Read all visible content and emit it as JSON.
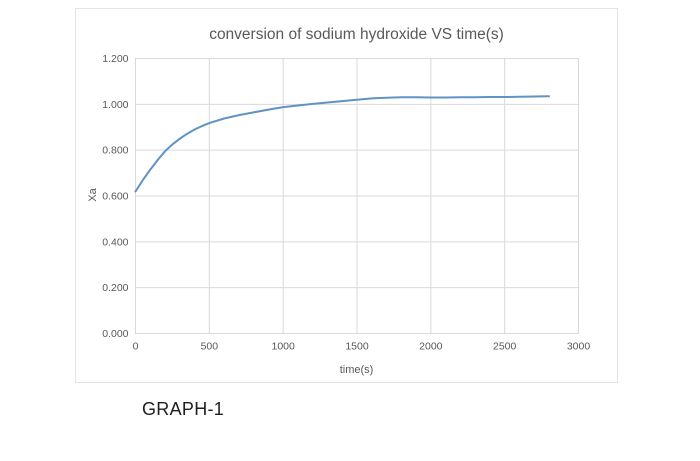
{
  "figure": {
    "caption": "GRAPH-1"
  },
  "colors": {
    "line": "#5f93c3",
    "grid": "#d9d9d9",
    "plot_border": "#d9d9d9",
    "text": "#595959",
    "card_border": "#e4e4e4",
    "background": "#ffffff"
  },
  "chart_data": {
    "type": "line",
    "title": "conversion of sodium hydroxide VS time(s)",
    "xlabel": "time(s)",
    "ylabel": "Xa",
    "xlim": [
      0,
      3000
    ],
    "ylim": [
      0,
      1.2
    ],
    "grid": true,
    "legend": "none",
    "x_tick_values": [
      0,
      500,
      1000,
      1500,
      2000,
      2500,
      3000
    ],
    "x_tick_labels": [
      "0",
      "500",
      "1000",
      "1500",
      "2000",
      "2500",
      "3000"
    ],
    "y_tick_values": [
      0.0,
      0.2,
      0.4,
      0.6,
      0.8,
      1.0,
      1.2
    ],
    "y_tick_labels": [
      "0.000",
      "0.200",
      "0.400",
      "0.600",
      "0.800",
      "1.000",
      "1.200"
    ],
    "series": [
      {
        "name": "Xa",
        "x": [
          0,
          50,
          100,
          150,
          200,
          250,
          300,
          350,
          400,
          450,
          500,
          600,
          700,
          800,
          900,
          1000,
          1100,
          1200,
          1300,
          1400,
          1500,
          1600,
          1700,
          1800,
          1900,
          2000,
          2100,
          2200,
          2300,
          2400,
          2500,
          2600,
          2700,
          2800
        ],
        "y": [
          0.62,
          0.67,
          0.715,
          0.757,
          0.795,
          0.825,
          0.85,
          0.872,
          0.89,
          0.905,
          0.918,
          0.938,
          0.953,
          0.965,
          0.977,
          0.988,
          0.995,
          1.002,
          1.008,
          1.014,
          1.02,
          1.026,
          1.029,
          1.031,
          1.031,
          1.03,
          1.03,
          1.031,
          1.031,
          1.032,
          1.032,
          1.033,
          1.034,
          1.035
        ]
      }
    ]
  }
}
